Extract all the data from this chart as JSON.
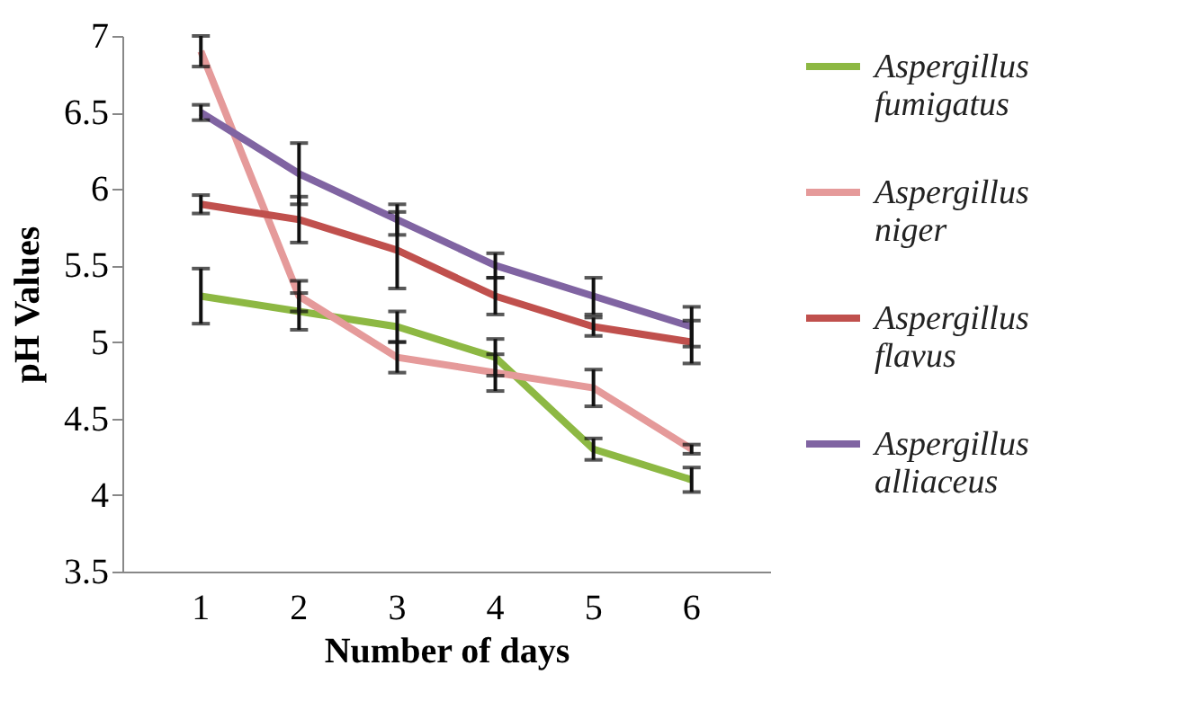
{
  "chart_data": {
    "type": "line",
    "xlabel": "Number of days",
    "ylabel": "pH Values",
    "categories": [
      "1",
      "2",
      "3",
      "4",
      "5",
      "6"
    ],
    "series": [
      {
        "name": "Aspergillus fumigatus",
        "color": "#8db843",
        "values": [
          5.3,
          5.2,
          5.1,
          4.9,
          4.3,
          4.1
        ],
        "errors": [
          0.18,
          0.12,
          0.1,
          0.12,
          0.07,
          0.08
        ]
      },
      {
        "name": "Aspergillus niger",
        "color": "#e59a9a",
        "values": [
          6.9,
          5.3,
          4.9,
          4.8,
          4.7,
          4.3
        ],
        "errors": [
          0.1,
          0.1,
          0.1,
          0.12,
          0.12,
          0.03
        ]
      },
      {
        "name": "Aspergillus flavus",
        "color": "#c0504d",
        "values": [
          5.9,
          5.8,
          5.6,
          5.3,
          5.1,
          5.0
        ],
        "errors": [
          0.06,
          0.15,
          0.25,
          0.12,
          0.06,
          0.14
        ]
      },
      {
        "name": "Aspergillus alliaceus",
        "color": "#8064a2",
        "values": [
          6.5,
          6.1,
          5.8,
          5.5,
          5.3,
          5.1
        ],
        "errors": [
          0.05,
          0.2,
          0.1,
          0.08,
          0.12,
          0.13
        ]
      }
    ],
    "ylim": [
      3.5,
      7
    ],
    "yticks": [
      3.5,
      4,
      4.5,
      5,
      5.5,
      6,
      6.5,
      7
    ],
    "grid": false,
    "legend": "right",
    "marker": "none",
    "line_style": "solid"
  }
}
